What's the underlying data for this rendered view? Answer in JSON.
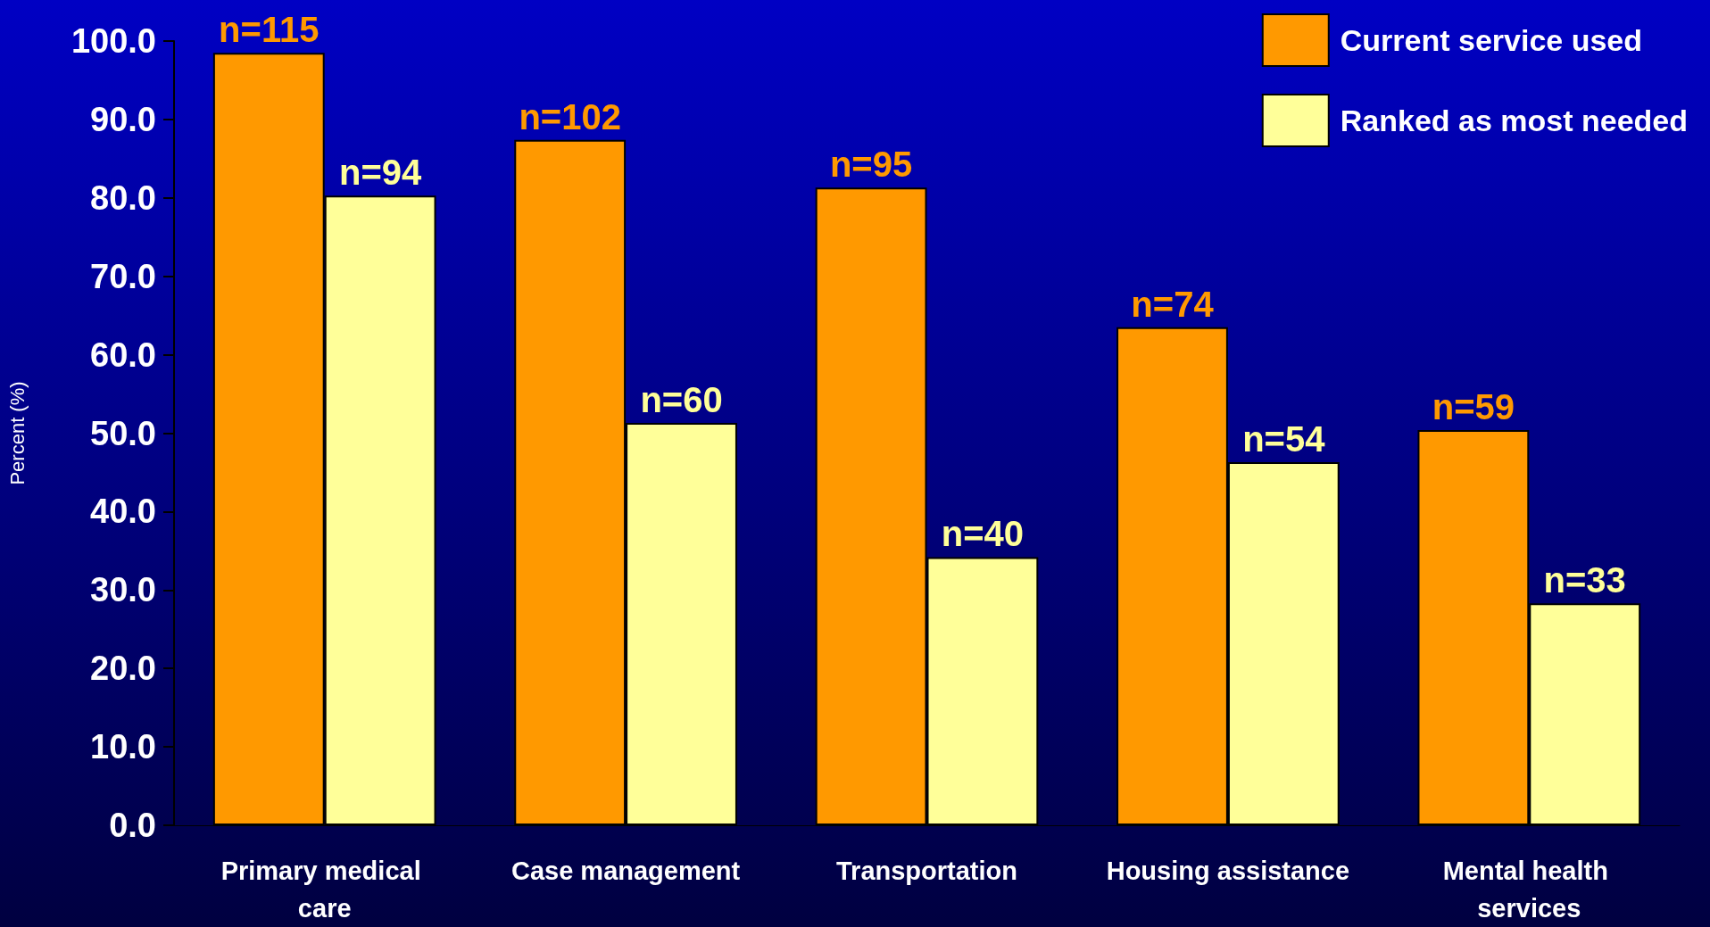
{
  "chart_data": {
    "type": "bar",
    "ylabel": "Percent (%)",
    "categories": [
      "Primary medical care",
      "Case management",
      "Transportation",
      "Housing assistance",
      "Mental health services"
    ],
    "series": [
      {
        "name": "Current service used",
        "color": "#ff9900",
        "values": [
          98.5,
          87.4,
          81.3,
          63.5,
          50.4
        ]
      },
      {
        "name": "Ranked as most needed",
        "color": "#ffff99",
        "values": [
          80.3,
          51.3,
          34.2,
          46.3,
          28.3
        ]
      }
    ],
    "annotations": [
      {
        "text": "n=115",
        "x": "Primary medical care",
        "y": 98.5
      },
      {
        "text": "n=94",
        "x": "Primary medical care",
        "y": 80.3
      },
      {
        "text": "n=102",
        "x": "Case management",
        "y": 87.4
      },
      {
        "text": "n=60",
        "x": "Case management",
        "y": 51.3
      },
      {
        "text": "n=95",
        "x": "Transportation",
        "y": 81.3
      },
      {
        "text": "n=40",
        "x": "Transportation",
        "y": 34.2
      },
      {
        "text": "n=74",
        "x": "Housing assistance",
        "y": 63.5
      },
      {
        "text": "n=54",
        "x": "Housing assistance",
        "y": 46.3
      },
      {
        "text": "n=59",
        "x": "Mental health services",
        "y": 50.4
      },
      {
        "text": "n=33",
        "x": "Mental health services",
        "y": 28.3
      }
    ],
    "ylim": [
      0,
      100
    ],
    "yticks": [
      {
        "value": 0,
        "label": "0.0"
      },
      {
        "value": 10,
        "label": "10.0"
      },
      {
        "value": 20,
        "label": "20.0"
      },
      {
        "value": 30,
        "label": "30.0"
      },
      {
        "value": 40,
        "label": "40.0"
      },
      {
        "value": 50,
        "label": "50.0"
      },
      {
        "value": 60,
        "label": "60.0"
      },
      {
        "value": 70,
        "label": "70.0"
      },
      {
        "value": 80,
        "label": "80.0"
      },
      {
        "value": 90,
        "label": "90.0"
      },
      {
        "value": 100,
        "label": "100.0"
      }
    ],
    "grid": false,
    "legend": "top right"
  }
}
